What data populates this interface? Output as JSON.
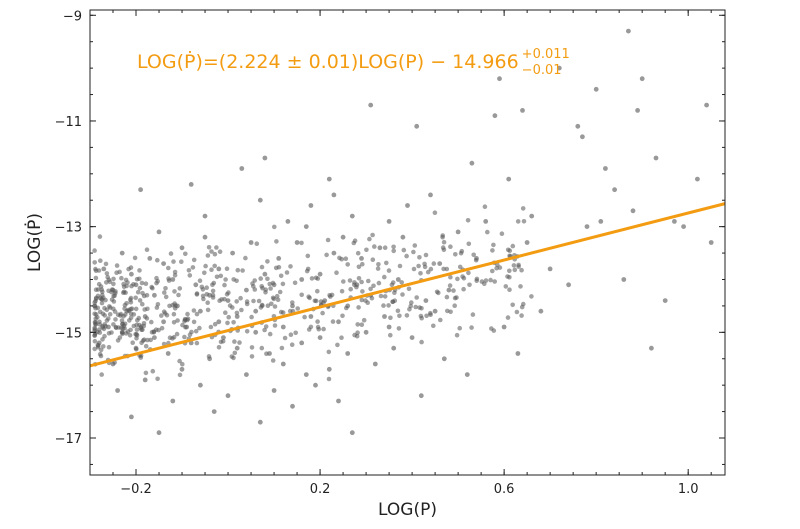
{
  "chart_data": {
    "type": "scatter",
    "xlabel": "LOG(P)",
    "ylabel": "LOG(Ṗ)",
    "xlim": [
      -0.3,
      1.08
    ],
    "ylim": [
      -17.7,
      -8.9
    ],
    "xticks": [
      -0.2,
      0.2,
      0.6,
      1.0
    ],
    "xtick_labels": [
      "−0.2",
      "0.2",
      "0.6",
      "1.0"
    ],
    "yticks": [
      -17,
      -15,
      -13,
      -11,
      -9
    ],
    "ytick_labels": [
      "−17",
      "−15",
      "−13",
      "−11",
      "−9"
    ],
    "grid": false,
    "point_color": "#555555",
    "fit_color": "#f39c12",
    "fit": {
      "slope": 2.224,
      "intercept": -14.966,
      "equation": {
        "main": "LOG(Ṗ)=(2.224 ± 0.01)LOG(P) − 14.966",
        "sup": "+0.011",
        "sub": "−0.01"
      }
    },
    "points": [
      [
        -0.29,
        -14.5
      ],
      [
        -0.28,
        -15.2
      ],
      [
        -0.27,
        -13.8
      ],
      [
        -0.26,
        -14.9
      ],
      [
        -0.25,
        -15.6
      ],
      [
        -0.25,
        -14.2
      ],
      [
        -0.24,
        -16.1
      ],
      [
        -0.23,
        -13.5
      ],
      [
        -0.23,
        -15.0
      ],
      [
        -0.22,
        -14.6
      ],
      [
        -0.21,
        -16.6
      ],
      [
        -0.21,
        -13.9
      ],
      [
        -0.2,
        -15.3
      ],
      [
        -0.2,
        -14.1
      ],
      [
        -0.19,
        -12.3
      ],
      [
        -0.18,
        -15.9
      ],
      [
        -0.18,
        -14.7
      ],
      [
        -0.17,
        -13.6
      ],
      [
        -0.16,
        -15.1
      ],
      [
        -0.16,
        -14.3
      ],
      [
        -0.15,
        -16.9
      ],
      [
        -0.14,
        -14.8
      ],
      [
        -0.14,
        -13.7
      ],
      [
        -0.13,
        -15.4
      ],
      [
        -0.12,
        -14.0
      ],
      [
        -0.12,
        -16.3
      ],
      [
        -0.11,
        -14.5
      ],
      [
        -0.1,
        -13.4
      ],
      [
        -0.1,
        -15.7
      ],
      [
        -0.09,
        -14.9
      ],
      [
        -0.08,
        -12.2
      ],
      [
        -0.08,
        -15.2
      ],
      [
        -0.07,
        -14.1
      ],
      [
        -0.06,
        -16.0
      ],
      [
        -0.06,
        -14.6
      ],
      [
        -0.05,
        -13.2
      ],
      [
        -0.04,
        -15.5
      ],
      [
        -0.04,
        -14.3
      ],
      [
        -0.03,
        -16.5
      ],
      [
        -0.02,
        -14.8
      ],
      [
        -0.02,
        -13.8
      ],
      [
        -0.01,
        -15.1
      ],
      [
        0.0,
        -14.4
      ],
      [
        0.0,
        -16.2
      ],
      [
        0.01,
        -13.5
      ],
      [
        0.02,
        -15.3
      ],
      [
        0.02,
        -14.7
      ],
      [
        0.03,
        -11.9
      ],
      [
        0.04,
        -15.8
      ],
      [
        0.04,
        -14.2
      ],
      [
        0.05,
        -13.3
      ],
      [
        0.06,
        -15.0
      ],
      [
        0.06,
        -14.6
      ],
      [
        0.07,
        -16.7
      ],
      [
        0.08,
        -13.9
      ],
      [
        0.08,
        -11.7
      ],
      [
        0.09,
        -15.4
      ],
      [
        0.1,
        -14.1
      ],
      [
        0.1,
        -16.1
      ],
      [
        0.11,
        -13.6
      ],
      [
        0.12,
        -14.9
      ],
      [
        0.12,
        -15.6
      ],
      [
        0.13,
        -12.9
      ],
      [
        0.14,
        -14.5
      ],
      [
        0.14,
        -16.4
      ],
      [
        0.15,
        -13.3
      ],
      [
        0.16,
        -15.2
      ],
      [
        0.16,
        -14.0
      ],
      [
        0.17,
        -15.8
      ],
      [
        0.18,
        -12.6
      ],
      [
        0.18,
        -14.7
      ],
      [
        0.19,
        -16.0
      ],
      [
        0.2,
        -13.9
      ],
      [
        0.2,
        -15.1
      ],
      [
        0.21,
        -14.4
      ],
      [
        0.22,
        -12.1
      ],
      [
        0.22,
        -15.7
      ],
      [
        0.23,
        -13.5
      ],
      [
        0.24,
        -14.8
      ],
      [
        0.24,
        -16.3
      ],
      [
        0.25,
        -13.2
      ],
      [
        0.26,
        -14.5
      ],
      [
        0.26,
        -15.4
      ],
      [
        0.27,
        -12.8
      ],
      [
        0.27,
        -16.9
      ],
      [
        0.28,
        -14.1
      ],
      [
        0.29,
        -13.6
      ],
      [
        0.3,
        -15.0
      ],
      [
        0.31,
        -10.7
      ],
      [
        0.31,
        -14.3
      ],
      [
        0.32,
        -15.6
      ],
      [
        0.33,
        -13.4
      ],
      [
        0.34,
        -14.7
      ],
      [
        0.35,
        -12.9
      ],
      [
        0.36,
        -15.3
      ],
      [
        0.37,
        -14.0
      ],
      [
        0.38,
        -13.2
      ],
      [
        0.39,
        -12.6
      ],
      [
        0.4,
        -15.1
      ],
      [
        0.41,
        -11.1
      ],
      [
        0.42,
        -16.2
      ],
      [
        0.43,
        -14.4
      ],
      [
        0.44,
        -12.4
      ],
      [
        0.46,
        -13.7
      ],
      [
        0.47,
        -15.5
      ],
      [
        0.48,
        -14.2
      ],
      [
        0.5,
        -13.1
      ],
      [
        0.52,
        -15.8
      ],
      [
        0.53,
        -11.8
      ],
      [
        0.54,
        -13.6
      ],
      [
        0.56,
        -12.9
      ],
      [
        0.58,
        -10.9
      ],
      [
        0.59,
        -10.2
      ],
      [
        0.6,
        -14.9
      ],
      [
        0.61,
        -12.1
      ],
      [
        0.63,
        -15.4
      ],
      [
        0.64,
        -10.8
      ],
      [
        0.65,
        -13.3
      ],
      [
        0.66,
        -12.8
      ],
      [
        0.68,
        -14.6
      ],
      [
        0.7,
        -13.8
      ],
      [
        0.72,
        -10.0
      ],
      [
        0.74,
        -14.1
      ],
      [
        0.76,
        -11.1
      ],
      [
        0.77,
        -11.3
      ],
      [
        0.78,
        -13.0
      ],
      [
        0.8,
        -10.4
      ],
      [
        0.81,
        -12.9
      ],
      [
        0.82,
        -11.9
      ],
      [
        0.84,
        -12.3
      ],
      [
        0.86,
        -14.0
      ],
      [
        0.87,
        -9.3
      ],
      [
        0.88,
        -12.7
      ],
      [
        0.89,
        -10.8
      ],
      [
        0.9,
        -10.2
      ],
      [
        0.92,
        -15.3
      ],
      [
        0.93,
        -11.7
      ],
      [
        0.95,
        -14.4
      ],
      [
        0.97,
        -12.9
      ],
      [
        0.99,
        -13.0
      ],
      [
        1.02,
        -12.1
      ],
      [
        1.04,
        -10.7
      ],
      [
        1.05,
        -13.3
      ],
      [
        -0.15,
        -13.1
      ],
      [
        -0.05,
        -12.8
      ],
      [
        0.07,
        -12.5
      ],
      [
        0.17,
        -13.0
      ],
      [
        0.23,
        -12.4
      ],
      [
        0.35,
        -14.9
      ],
      [
        0.45,
        -14.6
      ]
    ]
  }
}
